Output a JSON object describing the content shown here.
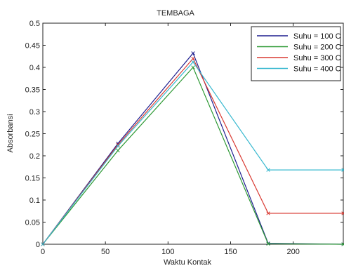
{
  "chart_data": {
    "type": "line",
    "title": "TEMBAGA",
    "xlabel": "Waktu Kontak",
    "ylabel": "Absorbansi",
    "xlim": [
      0,
      240
    ],
    "ylim": [
      0,
      0.5
    ],
    "x_ticks": [
      0,
      50,
      100,
      150,
      200
    ],
    "x_tick_labels": [
      "0",
      "50",
      "100",
      "150",
      "200"
    ],
    "y_ticks": [
      0,
      0.05,
      0.1,
      0.15,
      0.2,
      0.25,
      0.3,
      0.35,
      0.4,
      0.45,
      0.5
    ],
    "y_tick_labels": [
      "0",
      "0.05",
      "0.1",
      "0.15",
      "0.2",
      "0.25",
      "0.3",
      "0.35",
      "0.4",
      "0.45",
      "0.5"
    ],
    "grid": false,
    "legend_position": "top-right",
    "x": [
      0,
      60,
      120,
      180,
      240
    ],
    "series": [
      {
        "name": "Suhu = 100 C",
        "color": "#1f1f8f",
        "values": [
          0,
          0.228,
          0.432,
          0.002,
          0.0
        ]
      },
      {
        "name": "Suhu = 200 C",
        "color": "#2f9a36",
        "values": [
          0,
          0.212,
          0.4,
          0.001,
          0.0
        ]
      },
      {
        "name": "Suhu = 300 C",
        "color": "#d93a32",
        "values": [
          0,
          0.225,
          0.42,
          0.07,
          0.07
        ]
      },
      {
        "name": "Suhu = 400 C",
        "color": "#37b8cf",
        "values": [
          0,
          0.222,
          0.412,
          0.168,
          0.168
        ]
      }
    ]
  }
}
